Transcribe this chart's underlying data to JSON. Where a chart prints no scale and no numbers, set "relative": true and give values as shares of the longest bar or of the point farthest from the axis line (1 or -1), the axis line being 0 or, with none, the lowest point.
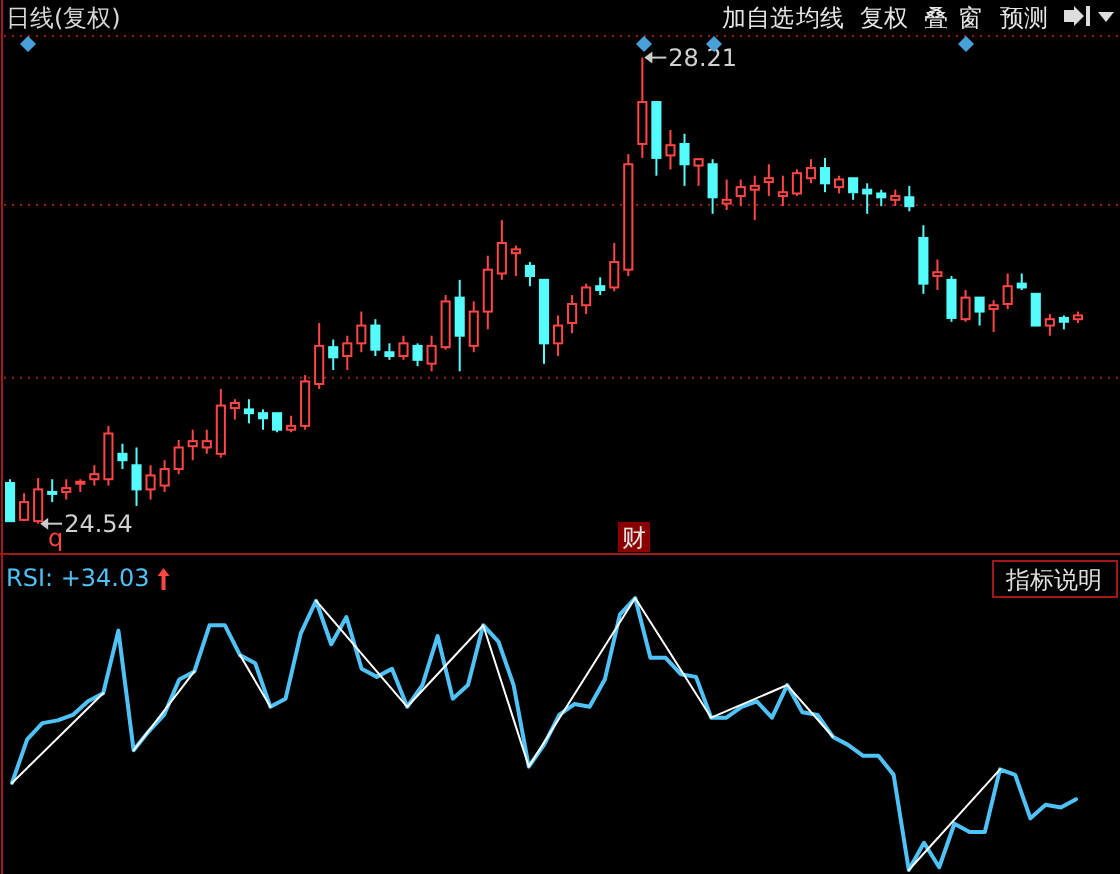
{
  "chart_data": [
    {
      "type": "candlestick",
      "title": "日线(复权)",
      "categories": [
        null,
        null,
        null,
        null,
        null,
        null,
        null,
        null,
        null,
        null,
        null,
        null,
        null,
        null,
        null,
        null,
        null,
        null,
        null,
        null,
        null,
        null,
        null,
        null,
        null,
        null,
        null,
        null,
        null,
        null,
        null,
        null,
        null,
        null,
        null,
        null,
        null,
        null,
        null,
        null,
        null,
        null,
        null,
        null,
        null,
        null,
        null,
        null,
        null,
        null,
        null,
        null,
        null,
        null,
        null,
        null,
        null,
        null,
        null,
        null,
        null,
        null,
        null,
        null,
        null,
        null,
        null,
        null,
        null,
        null,
        null,
        null,
        null,
        null,
        null,
        null,
        null
      ],
      "ohlc": [
        [
          24.86,
          24.89,
          24.56,
          24.56
        ],
        [
          24.57,
          24.78,
          24.56,
          24.71
        ],
        [
          24.56,
          24.9,
          24.54,
          24.81
        ],
        [
          24.79,
          24.89,
          24.71,
          24.78
        ],
        [
          24.79,
          24.89,
          24.73,
          24.82
        ],
        [
          24.86,
          24.89,
          24.79,
          24.87
        ],
        [
          24.89,
          25.0,
          24.84,
          24.93
        ],
        [
          24.89,
          25.31,
          24.84,
          25.25
        ],
        [
          25.09,
          25.17,
          24.97,
          25.04
        ],
        [
          25.0,
          25.14,
          24.68,
          24.81
        ],
        [
          24.81,
          25.0,
          24.73,
          24.92
        ],
        [
          24.84,
          25.04,
          24.79,
          24.97
        ],
        [
          24.97,
          25.2,
          24.93,
          25.14
        ],
        [
          25.15,
          25.28,
          25.04,
          25.19
        ],
        [
          25.14,
          25.28,
          25.09,
          25.19
        ],
        [
          25.09,
          25.6,
          25.06,
          25.47
        ],
        [
          25.45,
          25.52,
          25.36,
          25.49
        ],
        [
          25.44,
          25.52,
          25.33,
          25.41
        ],
        [
          25.41,
          25.44,
          25.28,
          25.37
        ],
        [
          25.41,
          25.41,
          25.26,
          25.28
        ],
        [
          25.28,
          25.39,
          25.26,
          25.31
        ],
        [
          25.31,
          25.71,
          25.28,
          25.66
        ],
        [
          25.64,
          26.12,
          25.6,
          25.94
        ],
        [
          25.93,
          25.99,
          25.75,
          25.85
        ],
        [
          25.86,
          26.02,
          25.75,
          25.96
        ],
        [
          25.96,
          26.21,
          25.89,
          26.1
        ],
        [
          26.1,
          26.15,
          25.86,
          25.91
        ],
        [
          25.89,
          25.96,
          25.83,
          25.86
        ],
        [
          25.86,
          26.02,
          25.83,
          25.96
        ],
        [
          25.94,
          25.96,
          25.78,
          25.83
        ],
        [
          25.8,
          26.02,
          25.74,
          25.94
        ],
        [
          25.93,
          26.34,
          25.91,
          26.29
        ],
        [
          26.32,
          26.46,
          25.74,
          26.02
        ],
        [
          25.94,
          26.29,
          25.89,
          26.21
        ],
        [
          26.21,
          26.65,
          26.07,
          26.54
        ],
        [
          26.51,
          26.93,
          26.46,
          26.75
        ],
        [
          26.67,
          26.73,
          26.49,
          26.7
        ],
        [
          26.57,
          26.6,
          26.41,
          26.49
        ],
        [
          26.46,
          26.46,
          25.8,
          25.96
        ],
        [
          25.96,
          26.18,
          25.86,
          26.1
        ],
        [
          26.12,
          26.34,
          26.04,
          26.27
        ],
        [
          26.26,
          26.43,
          26.19,
          26.4
        ],
        [
          26.41,
          26.48,
          26.34,
          26.38
        ],
        [
          26.4,
          26.75,
          26.37,
          26.6
        ],
        [
          26.54,
          27.45,
          26.49,
          27.37
        ],
        [
          27.53,
          28.21,
          27.42,
          27.86
        ],
        [
          27.86,
          27.86,
          27.28,
          27.42
        ],
        [
          27.44,
          27.64,
          27.33,
          27.52
        ],
        [
          27.53,
          27.61,
          27.2,
          27.37
        ],
        [
          27.36,
          27.41,
          27.2,
          27.41
        ],
        [
          27.37,
          27.41,
          26.98,
          27.11
        ],
        [
          27.06,
          27.25,
          27.01,
          27.09
        ],
        [
          27.12,
          27.25,
          27.04,
          27.19
        ],
        [
          27.17,
          27.28,
          26.93,
          27.2
        ],
        [
          27.23,
          27.37,
          27.12,
          27.26
        ],
        [
          27.12,
          27.28,
          27.04,
          27.15
        ],
        [
          27.14,
          27.33,
          27.12,
          27.3
        ],
        [
          27.26,
          27.41,
          27.22,
          27.34
        ],
        [
          27.34,
          27.42,
          27.15,
          27.22
        ],
        [
          27.19,
          27.28,
          27.14,
          27.25
        ],
        [
          27.26,
          27.26,
          27.09,
          27.15
        ],
        [
          27.17,
          27.22,
          26.98,
          27.14
        ],
        [
          27.14,
          27.17,
          27.04,
          27.11
        ],
        [
          27.09,
          27.17,
          27.04,
          27.12
        ],
        [
          27.11,
          27.2,
          27.0,
          27.04
        ],
        [
          26.79,
          26.89,
          26.35,
          26.43
        ],
        [
          26.49,
          26.62,
          26.38,
          26.52
        ],
        [
          26.46,
          26.49,
          26.13,
          26.16
        ],
        [
          26.15,
          26.38,
          26.13,
          26.32
        ],
        [
          26.32,
          26.32,
          26.1,
          26.21
        ],
        [
          26.23,
          26.3,
          26.05,
          26.26
        ],
        [
          26.27,
          26.51,
          26.23,
          26.41
        ],
        [
          26.43,
          26.51,
          26.38,
          26.4
        ],
        [
          26.35,
          26.35,
          26.1,
          26.1
        ],
        [
          26.1,
          26.19,
          26.02,
          26.15
        ],
        [
          26.16,
          26.18,
          26.07,
          26.13
        ],
        [
          26.15,
          26.21,
          26.12,
          26.18
        ]
      ],
      "ylim": [
        24.38,
        28.38
      ],
      "yticks": [
        {
          "value": 25.69,
          "label": null
        },
        {
          "value": 27.05,
          "label": null
        },
        {
          "value": 28.38,
          "label": null
        }
      ],
      "grid": "y",
      "tick_labels": false,
      "annotations": [
        "加自选",
        "均线",
        "复权",
        "叠",
        "窗",
        "预测",
        "28.21",
        "24.54",
        "财",
        "q"
      ]
    },
    {
      "type": "line",
      "title": "RSI: +34.03",
      "relative": true,
      "tick_labels": false,
      "categories": [
        null,
        null,
        null,
        null,
        null,
        null,
        null,
        null,
        null,
        null,
        null,
        null,
        null,
        null,
        null,
        null,
        null,
        null,
        null,
        null,
        null,
        null,
        null,
        null,
        null,
        null,
        null,
        null,
        null,
        null,
        null,
        null,
        null,
        null,
        null,
        null,
        null,
        null,
        null,
        null,
        null,
        null,
        null,
        null,
        null,
        null,
        null,
        null,
        null,
        null,
        null,
        null,
        null,
        null,
        null,
        null,
        null,
        null,
        null,
        null,
        null,
        null,
        null,
        null,
        null,
        null,
        null,
        null,
        null,
        null,
        null
      ],
      "series": [
        {
          "color": "#4fc3f7",
          "values": [
            0.32,
            0.48,
            0.54,
            0.55,
            0.57,
            0.62,
            0.65,
            0.88,
            0.44,
            0.51,
            0.57,
            0.7,
            0.73,
            0.9,
            0.9,
            0.79,
            0.76,
            0.6,
            0.63,
            0.87,
            0.99,
            0.83,
            0.93,
            0.74,
            0.71,
            0.74,
            0.6,
            0.68,
            0.86,
            0.63,
            0.68,
            0.9,
            0.84,
            0.68,
            0.38,
            0.46,
            0.57,
            0.61,
            0.6,
            0.7,
            0.94,
            1,
            0.78,
            0.78,
            0.72,
            0.71,
            0.56,
            0.56,
            0.6,
            0.62,
            0.56,
            0.68,
            0.58,
            0.57,
            0.49,
            0.46,
            0.42,
            0.42,
            0.35,
            0,
            0.1,
            0.01,
            0.17,
            0.14,
            0.14,
            0.37,
            0.35,
            0.19,
            0.24,
            0.23,
            0.26
          ]
        },
        {
          "color": "#ffffff",
          "values": [
            0.32,
            null,
            null,
            null,
            null,
            null,
            0.65,
            null,
            null,
            null,
            null,
            null,
            null,
            null,
            null,
            null,
            null,
            null,
            null,
            null,
            null,
            null,
            null,
            null,
            null,
            null,
            null,
            null,
            null,
            null,
            null,
            null,
            null,
            null,
            null,
            null,
            null,
            null,
            null,
            null,
            null,
            null,
            null,
            null,
            null,
            null,
            null,
            null,
            null,
            null,
            null,
            null,
            null,
            null,
            null,
            null,
            null,
            null,
            null,
            null,
            null,
            null,
            null,
            null,
            null,
            null,
            null,
            null,
            null,
            null,
            null
          ]
        },
        {
          "color": "#ffffff",
          "values": [
            null,
            null,
            null,
            null,
            null,
            null,
            null,
            null,
            0.44,
            null,
            null,
            null,
            0.73,
            null,
            null,
            null,
            null,
            null,
            null,
            null,
            null,
            null,
            null,
            null,
            null,
            null,
            null,
            null,
            null,
            null,
            null,
            null,
            null,
            null,
            null,
            null,
            null,
            null,
            null,
            null,
            null,
            null,
            null,
            null,
            null,
            null,
            null,
            null,
            null,
            null,
            null,
            null,
            null,
            null,
            null,
            null,
            null,
            null,
            null,
            null,
            null,
            null,
            null,
            null,
            null,
            null,
            null,
            null,
            null,
            null,
            null
          ]
        },
        {
          "color": "#ffffff",
          "values": [
            null,
            null,
            null,
            null,
            null,
            null,
            null,
            null,
            null,
            null,
            null,
            null,
            null,
            null,
            null,
            0.79,
            null,
            0.6,
            null,
            null,
            null,
            null,
            null,
            null,
            null,
            null,
            null,
            null,
            null,
            null,
            null,
            null,
            null,
            null,
            null,
            null,
            null,
            null,
            null,
            null,
            null,
            null,
            null,
            null,
            null,
            null,
            null,
            null,
            null,
            null,
            null,
            null,
            null,
            null,
            null,
            null,
            null,
            null,
            null,
            null,
            null,
            null,
            null,
            null,
            null,
            null,
            null,
            null,
            null,
            null,
            null
          ]
        },
        {
          "color": "#ffffff",
          "values": [
            null,
            null,
            null,
            null,
            null,
            null,
            null,
            null,
            null,
            null,
            null,
            null,
            null,
            null,
            null,
            null,
            null,
            null,
            null,
            null,
            0.99,
            null,
            null,
            null,
            null,
            null,
            0.6,
            null,
            null,
            null,
            null,
            0.9,
            null,
            null,
            0.38,
            null,
            null,
            null,
            null,
            null,
            null,
            1,
            null,
            null,
            null,
            null,
            0.56,
            null,
            null,
            null,
            null,
            0.68,
            null,
            null,
            0.49,
            null,
            null,
            null,
            null,
            null,
            null,
            null,
            null,
            null,
            null,
            null,
            null,
            null,
            null,
            null,
            null
          ]
        },
        {
          "color": "#ffffff",
          "values": [
            null,
            null,
            null,
            null,
            null,
            null,
            null,
            null,
            null,
            null,
            null,
            null,
            null,
            null,
            null,
            null,
            null,
            null,
            null,
            null,
            null,
            null,
            null,
            null,
            null,
            null,
            null,
            null,
            null,
            null,
            null,
            null,
            null,
            null,
            null,
            null,
            null,
            null,
            null,
            null,
            null,
            null,
            null,
            null,
            null,
            null,
            null,
            null,
            null,
            null,
            null,
            null,
            null,
            null,
            null,
            null,
            null,
            null,
            null,
            0,
            null,
            null,
            null,
            null,
            null,
            0.37,
            null,
            null,
            null,
            null,
            null
          ]
        }
      ],
      "annotations": [
        "指标说明"
      ]
    }
  ]
}
